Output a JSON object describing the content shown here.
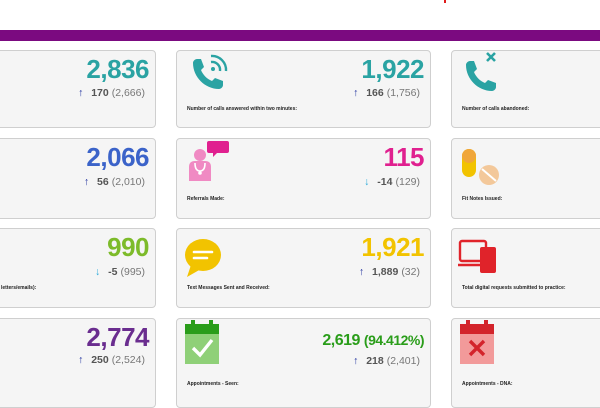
{
  "colors": {
    "topbar": "#7b0a80",
    "teal": "#2aa3a3",
    "blue": "#3b63c9",
    "pink": "#e0208f",
    "green_light": "#7dbb2a",
    "yellow": "#f2c300",
    "purple": "#6a2d8f",
    "green": "#2a9d1a",
    "arrow_up": "#1b2c9c",
    "arrow_down": "#29a9d9"
  },
  "cards": {
    "r1c1": {
      "value": "2,836",
      "delta": "170",
      "prev": "(2,666)",
      "direction": "up"
    },
    "r1c2": {
      "value": "1,922",
      "delta": "166",
      "prev": "(1,756)",
      "direction": "up",
      "label": "Number of calls answered within two minutes:",
      "icon": "phone-wifi-icon"
    },
    "r1c3": {
      "label": "Number of calls abandoned:",
      "icon": "phone-cross-icon"
    },
    "r2c1": {
      "value": "2,066",
      "delta": "56",
      "prev": "(2,010)",
      "direction": "up"
    },
    "r2c2": {
      "value": "115",
      "delta": "-14",
      "prev": "(129)",
      "direction": "down",
      "label": "Referrals Made:",
      "icon": "referral-doctor-icon"
    },
    "r2c3": {
      "label": "Fit Notes Issued:",
      "icon": "pills-icon"
    },
    "r3c1": {
      "value": "990",
      "delta": "-5",
      "prev": "(995)",
      "direction": "down",
      "label": "letters/emails):"
    },
    "r3c2": {
      "value": "1,921",
      "delta": "1,889",
      "prev": "(32)",
      "direction": "up",
      "label": "Text Messages Sent and Received:",
      "icon": "chat-bubble-icon"
    },
    "r3c3": {
      "label": "Total digital requests submitted to practice:",
      "icon": "devices-icon"
    },
    "r4c1": {
      "value": "2,774",
      "delta": "250",
      "prev": "(2,524)",
      "direction": "up"
    },
    "r4c2": {
      "value": "2,619",
      "pct": "(94.412%)",
      "delta": "218",
      "prev": "(2,401)",
      "direction": "up",
      "label": "Appointments - Seen:",
      "icon": "calendar-check-icon"
    },
    "r4c3": {
      "label": "Appointments - DNA:",
      "icon": "calendar-cross-icon"
    }
  },
  "arrows": {
    "up": "↑",
    "down": "↓"
  }
}
